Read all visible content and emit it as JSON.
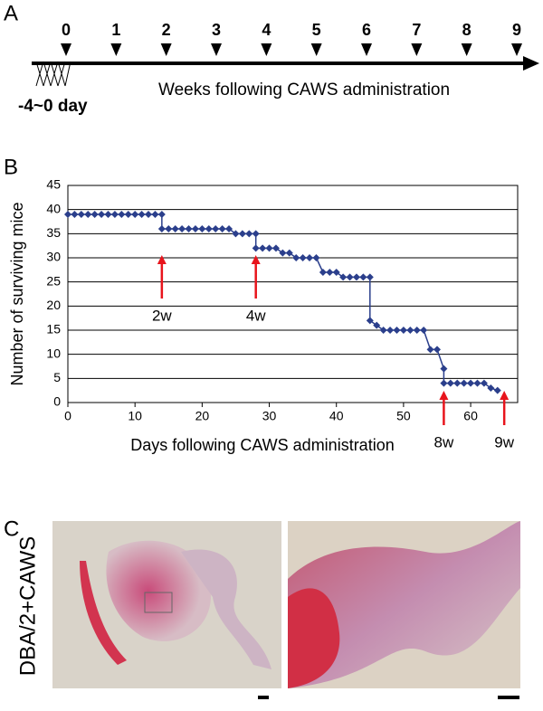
{
  "panel_labels": [
    "A",
    "B",
    "C"
  ],
  "timeline": {
    "weeks": [
      0,
      1,
      2,
      3,
      4,
      5,
      6,
      7,
      8,
      9
    ],
    "start_label": "-4~0 day",
    "axis_label": "Weeks following CAWS administration"
  },
  "chart_data": {
    "type": "line",
    "x": [
      0,
      1,
      2,
      3,
      4,
      5,
      6,
      7,
      8,
      9,
      10,
      11,
      12,
      13,
      14,
      14,
      15,
      16,
      17,
      18,
      19,
      20,
      21,
      22,
      23,
      24,
      25,
      26,
      27,
      28,
      28,
      29,
      30,
      31,
      32,
      33,
      34,
      35,
      36,
      37,
      38,
      39,
      40,
      41,
      42,
      43,
      44,
      45,
      45,
      46,
      47,
      48,
      49,
      50,
      51,
      52,
      53,
      54,
      55,
      56,
      56,
      57,
      58,
      59,
      60,
      61,
      62,
      63,
      64
    ],
    "series": [
      {
        "name": "Surviving mice",
        "color": "#2b3f8c",
        "values": [
          39,
          39,
          39,
          39,
          39,
          39,
          39,
          39,
          39,
          39,
          39,
          39,
          39,
          39,
          39,
          36,
          36,
          36,
          36,
          36,
          36,
          36,
          36,
          36,
          36,
          36,
          35,
          35,
          35,
          35,
          32,
          32,
          32,
          32,
          31,
          31,
          30,
          30,
          30,
          30,
          27,
          27,
          27,
          26,
          26,
          26,
          26,
          26,
          17,
          16,
          15,
          15,
          15,
          15,
          15,
          15,
          15,
          11,
          11,
          7,
          4,
          4,
          4,
          4,
          4,
          4,
          4,
          3,
          2.5
        ]
      }
    ],
    "xlim": [
      0,
      67
    ],
    "xticks": [
      0,
      10,
      20,
      30,
      40,
      50,
      60
    ],
    "ylim": [
      0,
      45
    ],
    "yticks": [
      0,
      5,
      10,
      15,
      20,
      25,
      30,
      35,
      40,
      45
    ],
    "grid": true,
    "xlabel": "Days following CAWS administration",
    "ylabel": "Number of surviving mice",
    "annotations": [
      {
        "text": "2w",
        "x": 14
      },
      {
        "text": "4w",
        "x": 28
      },
      {
        "text": "8w",
        "x": 56
      },
      {
        "text": "9w",
        "x": 65
      }
    ],
    "annotation_color": "#e8141c"
  },
  "histology": {
    "label": "DBA/2+CAWS"
  }
}
